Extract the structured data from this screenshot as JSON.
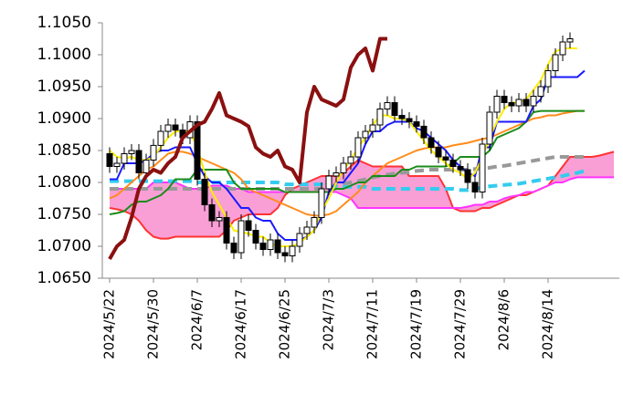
{
  "chart_data": {
    "type": "candlestick",
    "categories": [
      "2024/5/22",
      null,
      null,
      null,
      null,
      null,
      "2024/5/30",
      null,
      null,
      null,
      null,
      null,
      "2024/6/7",
      null,
      null,
      null,
      null,
      null,
      "2024/6/17",
      null,
      null,
      null,
      null,
      null,
      "2024/6/25",
      null,
      null,
      null,
      null,
      null,
      "2024/7/3",
      null,
      null,
      null,
      null,
      null,
      "2024/7/11",
      null,
      null,
      null,
      null,
      null,
      "2024/7/19",
      null,
      null,
      null,
      null,
      null,
      "2024/7/29",
      null,
      null,
      null,
      null,
      null,
      "2024/8/6",
      null,
      null,
      null,
      null,
      null,
      "2024/8/14",
      null,
      null,
      null,
      null,
      null,
      null,
      null,
      null,
      null
    ],
    "ohlc": {
      "open": [
        1.0845,
        1.0825,
        1.083,
        1.0845,
        1.085,
        1.0815,
        1.0835,
        1.0858,
        1.088,
        1.089,
        1.0882,
        1.087,
        1.0895,
        1.0805,
        1.0765,
        1.074,
        1.0745,
        1.0705,
        1.069,
        1.074,
        1.0725,
        1.0705,
        1.0695,
        1.071,
        1.069,
        1.0685,
        1.07,
        1.072,
        1.073,
        1.0745,
        1.079,
        1.081,
        1.0815,
        1.083,
        1.084,
        1.087,
        1.088,
        1.089,
        1.0915,
        1.0925,
        1.0905,
        1.09,
        1.0895,
        1.0888,
        1.087,
        1.0855,
        1.084,
        1.0835,
        1.0825,
        1.082,
        1.08,
        1.0785,
        1.086,
        1.091,
        1.0935,
        1.0925,
        1.092,
        1.093,
        1.092,
        1.0935,
        1.095,
        1.0975,
        1.1,
        1.102
      ],
      "high": [
        1.0855,
        1.084,
        1.0855,
        1.086,
        1.086,
        1.0845,
        1.0868,
        1.089,
        1.09,
        1.09,
        1.0892,
        1.0905,
        1.0905,
        1.0815,
        1.0775,
        1.0755,
        1.0755,
        1.0715,
        1.075,
        1.075,
        1.0735,
        1.0715,
        1.072,
        1.072,
        1.07,
        1.071,
        1.073,
        1.074,
        1.0755,
        1.08,
        1.082,
        1.0825,
        1.084,
        1.085,
        1.088,
        1.089,
        1.09,
        1.0925,
        1.0935,
        1.0935,
        1.0915,
        1.091,
        1.0905,
        1.0898,
        1.088,
        1.0865,
        1.085,
        1.0845,
        1.0835,
        1.083,
        1.081,
        1.087,
        1.092,
        1.0945,
        1.0945,
        1.0935,
        1.094,
        1.094,
        1.0945,
        1.096,
        1.0985,
        1.101,
        1.103,
        1.1035
      ],
      "low": [
        1.0815,
        1.0815,
        1.082,
        1.0835,
        1.0805,
        1.0805,
        1.0825,
        1.0848,
        1.087,
        1.0872,
        1.086,
        1.086,
        1.0795,
        1.0755,
        1.073,
        1.073,
        1.0695,
        1.068,
        1.068,
        1.0715,
        1.0695,
        1.0685,
        1.0685,
        1.068,
        1.0675,
        1.0675,
        1.069,
        1.071,
        1.072,
        1.0735,
        1.078,
        1.08,
        1.0805,
        1.082,
        1.083,
        1.086,
        1.087,
        1.088,
        1.0905,
        1.0895,
        1.089,
        1.0885,
        1.0878,
        1.086,
        1.0845,
        1.083,
        1.0825,
        1.0815,
        1.081,
        1.079,
        1.0775,
        1.0775,
        1.085,
        1.09,
        1.0915,
        1.091,
        1.091,
        1.091,
        1.091,
        1.0925,
        1.094,
        1.0965,
        1.099,
        1.101
      ],
      "close": [
        1.0825,
        1.083,
        1.0845,
        1.085,
        1.0815,
        1.0835,
        1.0858,
        1.088,
        1.089,
        1.0882,
        1.087,
        1.0895,
        1.0805,
        1.0765,
        1.074,
        1.0745,
        1.0705,
        1.069,
        1.074,
        1.0725,
        1.0705,
        1.0695,
        1.071,
        1.069,
        1.0685,
        1.07,
        1.072,
        1.073,
        1.0745,
        1.079,
        1.081,
        1.0815,
        1.083,
        1.084,
        1.087,
        1.088,
        1.089,
        1.0915,
        1.0925,
        1.0905,
        1.09,
        1.0895,
        1.0888,
        1.087,
        1.0855,
        1.084,
        1.0835,
        1.0825,
        1.082,
        1.08,
        1.0785,
        1.086,
        1.091,
        1.0935,
        1.0925,
        1.092,
        1.093,
        1.092,
        1.0935,
        1.095,
        1.0975,
        1.1,
        1.102,
        1.1025
      ]
    },
    "series": [
      {
        "color": "#ff3333",
        "width": 2,
        "values": [
          1.076,
          1.0758,
          1.0755,
          1.075,
          1.074,
          1.0725,
          1.0715,
          1.0712,
          1.0712,
          1.0715,
          1.0715,
          1.0715,
          1.0715,
          1.0715,
          1.0715,
          1.0715,
          1.0725,
          1.074,
          1.0745,
          1.075,
          1.075,
          1.075,
          1.075,
          1.076,
          1.078,
          1.079,
          1.0795,
          1.08,
          1.0805,
          1.081,
          1.081,
          1.081,
          1.0815,
          1.0825,
          1.0835,
          1.083,
          1.0825,
          1.0825,
          1.0825,
          1.0825,
          1.0825,
          1.081,
          1.081,
          1.081,
          1.081,
          1.081,
          1.079,
          1.076,
          1.0755,
          1.0755,
          1.0755,
          1.076,
          1.076,
          1.0765,
          1.077,
          1.0775,
          1.078,
          1.078,
          1.0785,
          1.079,
          1.0795,
          1.081,
          1.0825,
          1.084,
          1.084,
          1.084,
          1.084,
          1.0842,
          1.0845,
          1.0848
        ]
      },
      {
        "color": "#ff33ff",
        "width": 2,
        "values": [
          1.079,
          1.079,
          1.079,
          1.079,
          1.079,
          1.079,
          1.08,
          1.08,
          1.08,
          1.08,
          1.0795,
          1.079,
          1.079,
          1.079,
          1.0795,
          1.0795,
          1.0795,
          1.079,
          1.079,
          1.0785,
          1.0785,
          1.0785,
          1.0785,
          1.0785,
          1.0785,
          1.0785,
          1.0785,
          1.0785,
          1.0785,
          1.0785,
          1.0785,
          1.0785,
          1.078,
          1.0775,
          1.076,
          1.076,
          1.076,
          1.076,
          1.076,
          1.076,
          1.076,
          1.076,
          1.076,
          1.076,
          1.076,
          1.076,
          1.076,
          1.076,
          1.076,
          1.0762,
          1.0765,
          1.0765,
          1.077,
          1.077,
          1.0775,
          1.0778,
          1.078,
          1.0785,
          1.0785,
          1.079,
          1.0795,
          1.08,
          1.08,
          1.0805,
          1.0808,
          1.0808,
          1.0808,
          1.0808,
          1.0808,
          1.0808
        ]
      },
      {
        "color": "#999999",
        "width": 4,
        "dash": true,
        "values": [
          1.079,
          1.079,
          1.079,
          1.079,
          1.079,
          1.079,
          1.079,
          1.079,
          1.079,
          1.079,
          1.079,
          1.079,
          1.079,
          1.079,
          1.079,
          1.079,
          1.079,
          1.079,
          1.079,
          1.079,
          1.079,
          1.079,
          1.079,
          1.079,
          1.079,
          1.079,
          1.079,
          1.079,
          1.079,
          1.079,
          1.0792,
          1.0795,
          1.0798,
          1.08,
          1.0802,
          1.0805,
          1.0808,
          1.081,
          1.0812,
          1.0814,
          1.0815,
          1.0816,
          1.0818,
          1.0819,
          1.082,
          1.082,
          1.082,
          1.082,
          1.082,
          1.082,
          1.0821,
          1.0822,
          1.0823,
          1.0825,
          1.0826,
          1.0828,
          1.083,
          1.0832,
          1.0834,
          1.0836,
          1.0838,
          1.084,
          1.084,
          1.084,
          1.084,
          1.084,
          null,
          null,
          null,
          null
        ]
      },
      {
        "color": "#33ccee",
        "width": 4,
        "dash": true,
        "values": [
          1.0802,
          1.0802,
          1.0802,
          1.0802,
          1.0802,
          1.0802,
          1.0802,
          1.0802,
          1.0802,
          1.0802,
          1.0802,
          1.0802,
          1.08,
          1.08,
          1.08,
          1.08,
          1.08,
          1.08,
          1.08,
          1.08,
          1.08,
          1.08,
          1.08,
          1.08,
          1.0797,
          1.0797,
          1.0797,
          1.0797,
          1.0797,
          1.0797,
          1.0793,
          1.0793,
          1.0793,
          1.0793,
          1.0793,
          1.0793,
          1.079,
          1.079,
          1.079,
          1.079,
          1.079,
          1.079,
          1.079,
          1.079,
          1.079,
          1.079,
          1.079,
          1.079,
          1.0788,
          1.0788,
          1.079,
          1.0792,
          1.0794,
          1.0795,
          1.0796,
          1.0797,
          1.0798,
          1.08,
          1.0802,
          1.0804,
          1.0806,
          1.0808,
          1.081,
          1.0813,
          1.0815,
          1.0818,
          null,
          null,
          null,
          null
        ]
      },
      {
        "color": "#ff8c1a",
        "width": 2,
        "values": [
          1.0775,
          1.078,
          1.079,
          1.08,
          1.081,
          1.082,
          1.0825,
          1.0835,
          1.0845,
          1.0848,
          1.0848,
          1.0845,
          1.084,
          1.0835,
          1.083,
          1.0825,
          1.082,
          1.0815,
          1.0805,
          1.079,
          1.0785,
          1.078,
          1.0775,
          1.077,
          1.0765,
          1.076,
          1.0755,
          1.075,
          1.0748,
          1.0748,
          1.075,
          1.0755,
          1.0765,
          1.0775,
          1.0785,
          1.08,
          1.081,
          1.082,
          1.083,
          1.0835,
          1.084,
          1.0845,
          1.085,
          1.0853,
          1.0855,
          1.0855,
          1.0855,
          1.0858,
          1.086,
          1.0862,
          1.0865,
          1.0868,
          1.087,
          1.0875,
          1.088,
          1.0885,
          1.089,
          1.0895,
          1.09,
          1.0902,
          1.0905,
          1.0905,
          1.0908,
          1.091,
          1.0912,
          1.0912,
          null,
          null,
          null,
          null
        ]
      },
      {
        "color": "#1a8c1a",
        "width": 2,
        "values": [
          1.075,
          1.0752,
          1.0755,
          1.0765,
          1.077,
          1.077,
          1.0775,
          1.078,
          1.079,
          1.0805,
          1.0805,
          1.0805,
          1.082,
          1.082,
          1.082,
          1.082,
          1.082,
          1.08,
          1.079,
          1.079,
          1.079,
          1.079,
          1.079,
          1.079,
          1.0785,
          1.0785,
          1.0785,
          1.0785,
          1.0785,
          1.0785,
          1.0785,
          1.079,
          1.079,
          1.0795,
          1.08,
          1.08,
          1.081,
          1.081,
          1.081,
          1.081,
          1.082,
          1.082,
          1.0825,
          1.0825,
          1.0825,
          1.0825,
          1.0825,
          1.083,
          1.084,
          1.084,
          1.084,
          1.084,
          1.085,
          1.087,
          1.0875,
          1.088,
          1.0885,
          1.0895,
          1.091,
          1.0912,
          1.0912,
          1.0912,
          1.0912,
          1.0912,
          1.0912,
          1.0912,
          null,
          null,
          null,
          null
        ]
      },
      {
        "color": "#1a1aff",
        "width": 2,
        "values": [
          1.0805,
          1.0805,
          1.083,
          1.083,
          1.083,
          1.0835,
          1.0845,
          1.085,
          1.085,
          1.0855,
          1.0855,
          1.0855,
          1.083,
          1.081,
          1.08,
          1.08,
          1.079,
          1.0775,
          1.076,
          1.076,
          1.0745,
          1.074,
          1.074,
          1.072,
          1.071,
          1.071,
          1.071,
          1.0715,
          1.0725,
          1.0745,
          1.0785,
          1.08,
          1.08,
          1.0815,
          1.083,
          1.086,
          1.088,
          1.088,
          1.089,
          1.0895,
          1.0895,
          1.0895,
          1.0885,
          1.088,
          1.087,
          1.086,
          1.085,
          1.0835,
          1.0825,
          1.0815,
          1.081,
          1.0855,
          1.0855,
          1.0895,
          1.0895,
          1.0895,
          1.0895,
          1.0895,
          1.092,
          1.093,
          1.0965,
          1.0965,
          1.0965,
          1.0965,
          1.0965,
          1.0975,
          null,
          null,
          null,
          null
        ]
      },
      {
        "color": "#ffee00",
        "width": 2,
        "values": [
          1.085,
          1.084,
          1.0838,
          1.084,
          1.0835,
          1.0835,
          1.084,
          1.0855,
          1.087,
          1.088,
          1.088,
          1.088,
          1.0855,
          1.0815,
          1.0785,
          1.0765,
          1.0745,
          1.0725,
          1.0722,
          1.072,
          1.0715,
          1.0715,
          1.0705,
          1.07,
          1.07,
          1.07,
          1.0705,
          1.0715,
          1.0725,
          1.0755,
          1.0775,
          1.08,
          1.082,
          1.0835,
          1.0855,
          1.087,
          1.089,
          1.0905,
          1.0905,
          1.09,
          1.09,
          1.0895,
          1.088,
          1.0865,
          1.085,
          1.084,
          1.083,
          1.082,
          1.0815,
          1.0805,
          1.0815,
          1.084,
          1.087,
          1.0895,
          1.0915,
          1.0925,
          1.0925,
          1.093,
          1.0945,
          1.096,
          1.0985,
          1.1005,
          1.101,
          1.101,
          1.101,
          null,
          null,
          null,
          null,
          null
        ]
      },
      {
        "color": "#8b1010",
        "width": 4,
        "values": [
          1.068,
          1.07,
          1.071,
          1.0745,
          1.079,
          1.081,
          1.082,
          1.0815,
          1.083,
          1.084,
          1.087,
          1.088,
          1.089,
          1.0895,
          1.0915,
          1.094,
          1.0905,
          1.09,
          1.0895,
          1.0888,
          1.0855,
          1.0845,
          1.084,
          1.085,
          1.0825,
          1.082,
          1.08,
          1.091,
          1.095,
          1.093,
          1.0925,
          1.092,
          1.093,
          1.098,
          1.1,
          1.101,
          1.0975,
          1.1025,
          1.1025,
          null,
          null,
          null,
          null,
          null,
          null,
          null,
          null,
          null,
          null,
          null,
          null,
          null,
          null,
          null,
          null,
          null,
          null,
          null,
          null,
          null,
          null,
          null,
          null,
          null,
          null,
          null,
          null,
          null,
          null,
          null
        ]
      }
    ],
    "cloud_color": "#f77fc7",
    "ylim": [
      1.065,
      1.105
    ],
    "yticks": [
      {
        "value": 1.065,
        "label": "1.0650"
      },
      {
        "value": 1.07,
        "label": "1.0700"
      },
      {
        "value": 1.075,
        "label": "1.0750"
      },
      {
        "value": 1.08,
        "label": "1.0800"
      },
      {
        "value": 1.085,
        "label": "1.0850"
      },
      {
        "value": 1.09,
        "label": "1.0900"
      },
      {
        "value": 1.095,
        "label": "1.0950"
      },
      {
        "value": 1.1,
        "label": "1.1000"
      },
      {
        "value": 1.105,
        "label": "1.1050"
      }
    ]
  }
}
